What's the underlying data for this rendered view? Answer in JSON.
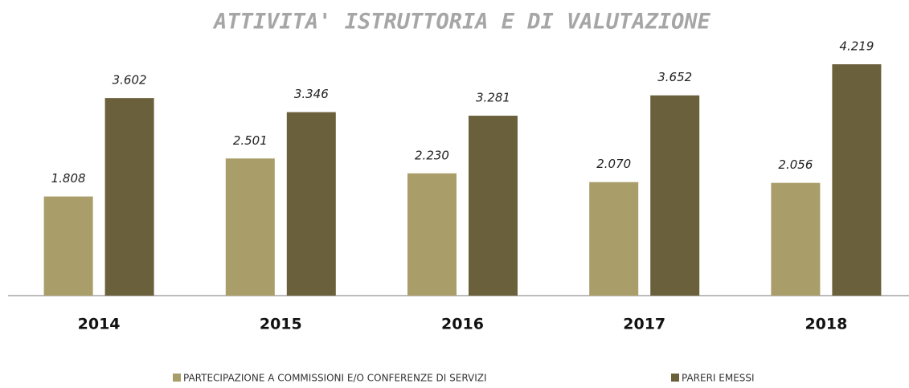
{
  "chart_data": {
    "type": "bar",
    "title": "ATTIVITA' ISTRUTTORIA E DI VALUTAZIONE",
    "categories": [
      "2014",
      "2015",
      "2016",
      "2017",
      "2018"
    ],
    "series": [
      {
        "name": "PARTECIPAZIONE A COMMISSIONI E/O CONFERENZE DI SERVIZI",
        "color": "#a99d69",
        "values": [
          1808,
          2501,
          2230,
          2070,
          2056
        ],
        "value_labels": [
          "1.808",
          "2.501",
          "2.230",
          "2.070",
          "2.056"
        ]
      },
      {
        "name": "PARERI EMESSI",
        "color": "#6b603c",
        "values": [
          3602,
          3346,
          3281,
          3652,
          4219
        ],
        "value_labels": [
          "3.602",
          "3.346",
          "3.281",
          "3.652",
          "4.219"
        ]
      }
    ],
    "legend": "bottom"
  }
}
